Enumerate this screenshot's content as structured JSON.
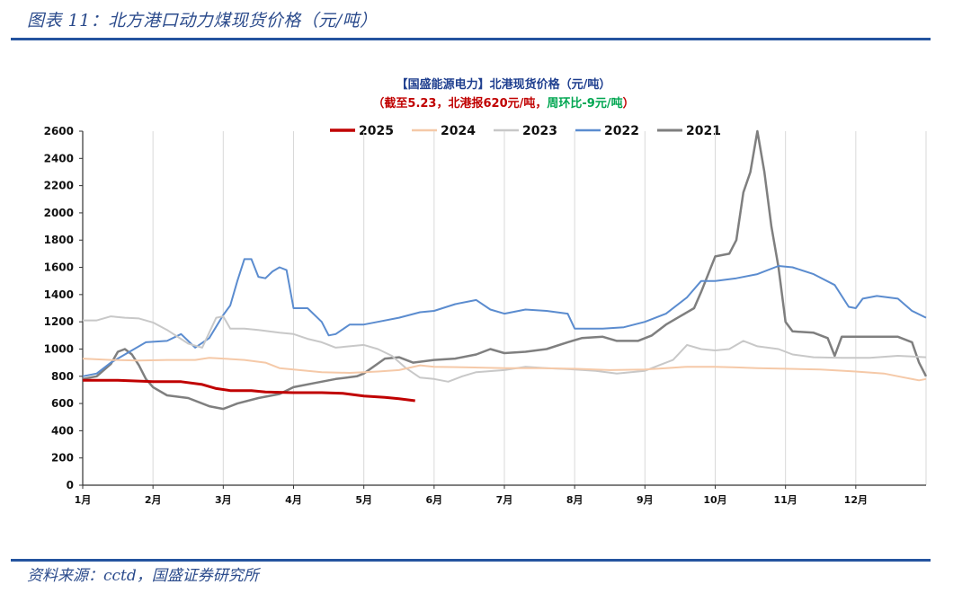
{
  "figure": {
    "title": "图表 11：北方港口动力煤现货价格（元/吨）",
    "source": "资料来源：cctd，国盛证券研究所"
  },
  "chart_data": {
    "type": "line",
    "title": "【国盛能源电力】北港现货价格（元/吨）",
    "subtitle_parts": [
      {
        "text": "（截至",
        "color": "#c00000"
      },
      {
        "text": "5.23",
        "color": "#c00000"
      },
      {
        "text": "，北港报",
        "color": "#c00000"
      },
      {
        "text": "620",
        "color": "#c00000"
      },
      {
        "text": "元/吨，",
        "color": "#c00000"
      },
      {
        "text": "周环比-9元/吨",
        "color": "#00a651"
      },
      {
        "text": "）",
        "color": "#c00000"
      }
    ],
    "ylim": [
      0,
      2600
    ],
    "yticks": [
      0,
      200,
      400,
      600,
      800,
      1000,
      1200,
      1400,
      1600,
      1800,
      2000,
      2200,
      2400,
      2600
    ],
    "xlim": [
      1,
      13
    ],
    "xticks": [
      "1月",
      "2月",
      "3月",
      "4月",
      "5月",
      "6月",
      "7月",
      "8月",
      "9月",
      "10月",
      "11月",
      "12月"
    ],
    "grid": "vertical",
    "legend_position": "top",
    "series": [
      {
        "name": "2025",
        "color": "#c00000",
        "width": 3,
        "points": [
          [
            1.0,
            770
          ],
          [
            1.5,
            770
          ],
          [
            2.0,
            760
          ],
          [
            2.4,
            760
          ],
          [
            2.7,
            740
          ],
          [
            2.9,
            710
          ],
          [
            3.1,
            695
          ],
          [
            3.4,
            695
          ],
          [
            3.6,
            685
          ],
          [
            4.0,
            680
          ],
          [
            4.4,
            680
          ],
          [
            4.7,
            675
          ],
          [
            5.0,
            655
          ],
          [
            5.3,
            645
          ],
          [
            5.5,
            635
          ],
          [
            5.73,
            620
          ]
        ]
      },
      {
        "name": "2024",
        "color": "#f5c9a8",
        "width": 2,
        "points": [
          [
            1.0,
            930
          ],
          [
            1.4,
            920
          ],
          [
            1.8,
            915
          ],
          [
            2.2,
            920
          ],
          [
            2.6,
            920
          ],
          [
            2.8,
            935
          ],
          [
            3.0,
            930
          ],
          [
            3.3,
            920
          ],
          [
            3.6,
            900
          ],
          [
            3.8,
            860
          ],
          [
            4.0,
            850
          ],
          [
            4.4,
            830
          ],
          [
            4.8,
            825
          ],
          [
            5.2,
            835
          ],
          [
            5.5,
            845
          ],
          [
            5.8,
            880
          ],
          [
            6.0,
            870
          ],
          [
            6.5,
            865
          ],
          [
            7.0,
            860
          ],
          [
            7.5,
            860
          ],
          [
            8.0,
            855
          ],
          [
            8.5,
            845
          ],
          [
            9.0,
            850
          ],
          [
            9.3,
            860
          ],
          [
            9.6,
            870
          ],
          [
            10.0,
            870
          ],
          [
            10.3,
            865
          ],
          [
            10.6,
            860
          ],
          [
            11.0,
            855
          ],
          [
            11.5,
            850
          ],
          [
            12.0,
            835
          ],
          [
            12.4,
            820
          ],
          [
            12.7,
            790
          ],
          [
            12.9,
            770
          ],
          [
            13.0,
            780
          ]
        ]
      },
      {
        "name": "2023",
        "color": "#c8c8c8",
        "width": 2,
        "points": [
          [
            1.0,
            1210
          ],
          [
            1.2,
            1210
          ],
          [
            1.4,
            1240
          ],
          [
            1.6,
            1230
          ],
          [
            1.8,
            1225
          ],
          [
            2.0,
            1195
          ],
          [
            2.2,
            1140
          ],
          [
            2.5,
            1040
          ],
          [
            2.7,
            1010
          ],
          [
            2.9,
            1230
          ],
          [
            3.0,
            1240
          ],
          [
            3.1,
            1150
          ],
          [
            3.3,
            1150
          ],
          [
            3.5,
            1140
          ],
          [
            3.8,
            1120
          ],
          [
            4.0,
            1110
          ],
          [
            4.2,
            1075
          ],
          [
            4.4,
            1050
          ],
          [
            4.6,
            1010
          ],
          [
            4.8,
            1020
          ],
          [
            5.0,
            1030
          ],
          [
            5.2,
            1000
          ],
          [
            5.4,
            950
          ],
          [
            5.6,
            860
          ],
          [
            5.8,
            790
          ],
          [
            6.0,
            780
          ],
          [
            6.2,
            760
          ],
          [
            6.4,
            800
          ],
          [
            6.6,
            830
          ],
          [
            7.0,
            845
          ],
          [
            7.3,
            870
          ],
          [
            7.6,
            860
          ],
          [
            8.0,
            850
          ],
          [
            8.3,
            840
          ],
          [
            8.6,
            820
          ],
          [
            9.0,
            840
          ],
          [
            9.2,
            880
          ],
          [
            9.4,
            920
          ],
          [
            9.6,
            1030
          ],
          [
            9.8,
            1000
          ],
          [
            10.0,
            990
          ],
          [
            10.2,
            1000
          ],
          [
            10.4,
            1060
          ],
          [
            10.6,
            1020
          ],
          [
            10.9,
            1000
          ],
          [
            11.1,
            960
          ],
          [
            11.4,
            940
          ],
          [
            11.8,
            935
          ],
          [
            12.2,
            935
          ],
          [
            12.6,
            950
          ],
          [
            13.0,
            940
          ]
        ]
      },
      {
        "name": "2022",
        "color": "#5b8ccf",
        "width": 2,
        "points": [
          [
            1.0,
            800
          ],
          [
            1.2,
            820
          ],
          [
            1.4,
            900
          ],
          [
            1.6,
            960
          ],
          [
            1.9,
            1050
          ],
          [
            2.2,
            1060
          ],
          [
            2.4,
            1110
          ],
          [
            2.6,
            1010
          ],
          [
            2.8,
            1080
          ],
          [
            3.0,
            1250
          ],
          [
            3.1,
            1320
          ],
          [
            3.2,
            1500
          ],
          [
            3.3,
            1660
          ],
          [
            3.4,
            1660
          ],
          [
            3.5,
            1530
          ],
          [
            3.6,
            1520
          ],
          [
            3.7,
            1570
          ],
          [
            3.8,
            1600
          ],
          [
            3.9,
            1580
          ],
          [
            4.0,
            1300
          ],
          [
            4.2,
            1300
          ],
          [
            4.4,
            1200
          ],
          [
            4.5,
            1100
          ],
          [
            4.6,
            1110
          ],
          [
            4.8,
            1180
          ],
          [
            5.0,
            1180
          ],
          [
            5.2,
            1200
          ],
          [
            5.5,
            1230
          ],
          [
            5.8,
            1270
          ],
          [
            6.0,
            1280
          ],
          [
            6.3,
            1330
          ],
          [
            6.6,
            1360
          ],
          [
            6.8,
            1290
          ],
          [
            7.0,
            1260
          ],
          [
            7.3,
            1290
          ],
          [
            7.6,
            1280
          ],
          [
            7.9,
            1260
          ],
          [
            8.0,
            1150
          ],
          [
            8.4,
            1150
          ],
          [
            8.7,
            1160
          ],
          [
            9.0,
            1200
          ],
          [
            9.3,
            1260
          ],
          [
            9.6,
            1380
          ],
          [
            9.8,
            1500
          ],
          [
            10.0,
            1500
          ],
          [
            10.3,
            1520
          ],
          [
            10.6,
            1550
          ],
          [
            10.9,
            1610
          ],
          [
            11.1,
            1600
          ],
          [
            11.4,
            1550
          ],
          [
            11.7,
            1470
          ],
          [
            11.9,
            1310
          ],
          [
            12.0,
            1300
          ],
          [
            12.1,
            1370
          ],
          [
            12.3,
            1390
          ],
          [
            12.6,
            1370
          ],
          [
            12.8,
            1280
          ],
          [
            13.0,
            1230
          ]
        ]
      },
      {
        "name": "2021",
        "color": "#7f7f7f",
        "width": 2.5,
        "points": [
          [
            1.0,
            780
          ],
          [
            1.2,
            800
          ],
          [
            1.4,
            890
          ],
          [
            1.5,
            980
          ],
          [
            1.6,
            1000
          ],
          [
            1.7,
            960
          ],
          [
            1.8,
            880
          ],
          [
            1.9,
            780
          ],
          [
            2.0,
            720
          ],
          [
            2.2,
            660
          ],
          [
            2.5,
            640
          ],
          [
            2.8,
            580
          ],
          [
            3.0,
            560
          ],
          [
            3.2,
            600
          ],
          [
            3.5,
            640
          ],
          [
            3.8,
            670
          ],
          [
            4.0,
            720
          ],
          [
            4.3,
            750
          ],
          [
            4.6,
            780
          ],
          [
            4.9,
            800
          ],
          [
            5.0,
            820
          ],
          [
            5.3,
            930
          ],
          [
            5.5,
            940
          ],
          [
            5.7,
            900
          ],
          [
            6.0,
            920
          ],
          [
            6.3,
            930
          ],
          [
            6.6,
            960
          ],
          [
            6.8,
            1000
          ],
          [
            7.0,
            970
          ],
          [
            7.3,
            980
          ],
          [
            7.6,
            1000
          ],
          [
            7.9,
            1050
          ],
          [
            8.1,
            1080
          ],
          [
            8.4,
            1090
          ],
          [
            8.6,
            1060
          ],
          [
            8.9,
            1060
          ],
          [
            9.1,
            1100
          ],
          [
            9.3,
            1180
          ],
          [
            9.5,
            1240
          ],
          [
            9.7,
            1300
          ],
          [
            9.8,
            1420
          ],
          [
            10.0,
            1680
          ],
          [
            10.2,
            1700
          ],
          [
            10.3,
            1800
          ],
          [
            10.4,
            2150
          ],
          [
            10.5,
            2300
          ],
          [
            10.6,
            2600
          ],
          [
            10.7,
            2300
          ],
          [
            10.8,
            1900
          ],
          [
            10.9,
            1600
          ],
          [
            11.0,
            1200
          ],
          [
            11.1,
            1130
          ],
          [
            11.4,
            1120
          ],
          [
            11.6,
            1080
          ],
          [
            11.7,
            950
          ],
          [
            11.8,
            1090
          ],
          [
            12.2,
            1090
          ],
          [
            12.6,
            1090
          ],
          [
            12.8,
            1050
          ],
          [
            12.9,
            900
          ],
          [
            13.0,
            800
          ]
        ]
      }
    ]
  }
}
